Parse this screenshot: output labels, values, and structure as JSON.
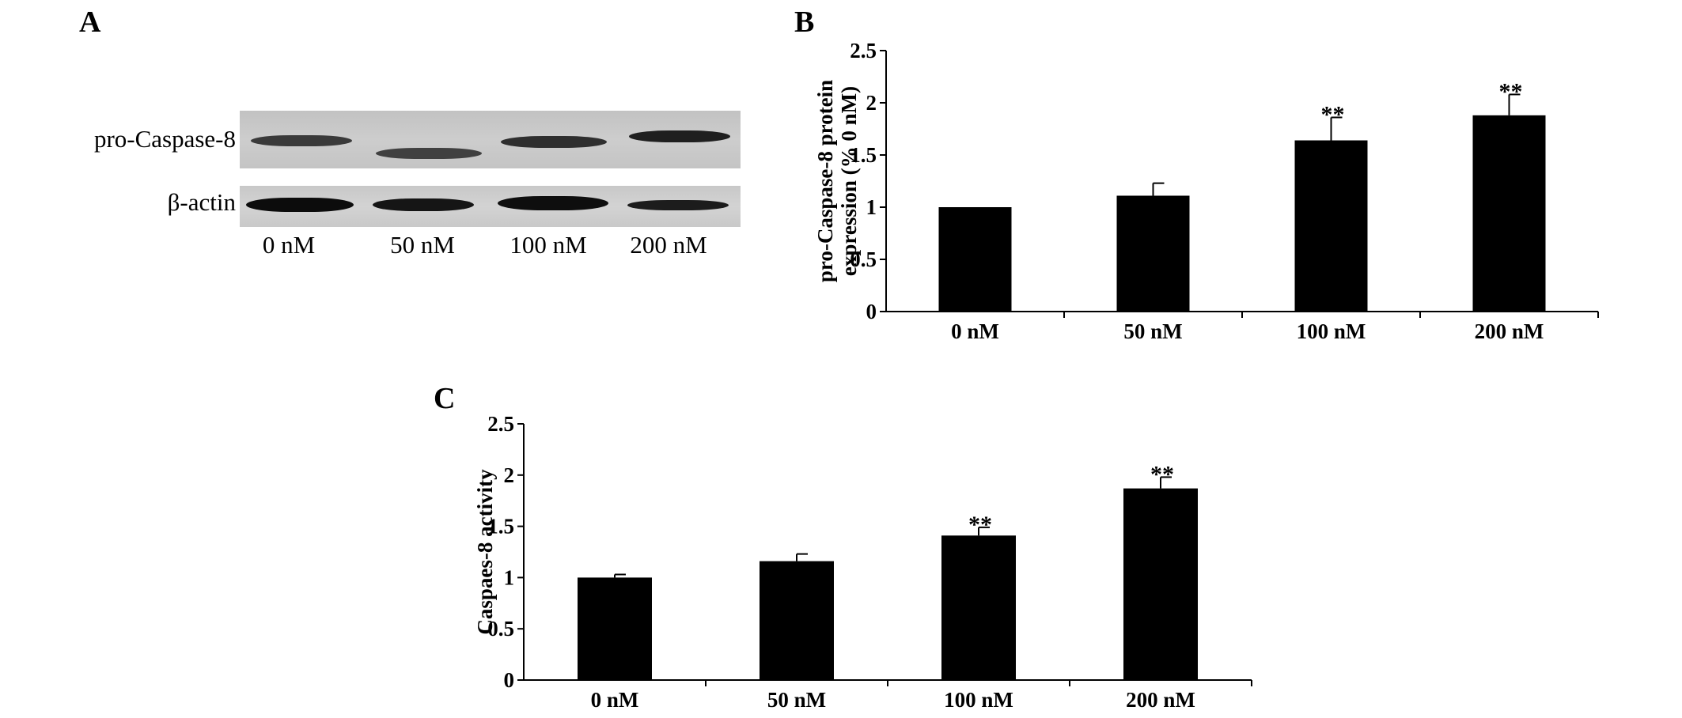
{
  "panels": {
    "a": "A",
    "b": "B",
    "c": "C"
  },
  "blot": {
    "row_labels": [
      "pro-Caspase-8",
      "β-actin"
    ],
    "lanes": [
      "0 nM",
      "50 nM",
      "100 nM",
      "200 nM"
    ]
  },
  "chart_data": [
    {
      "id": "B",
      "type": "bar",
      "categories": [
        "0 nM",
        "50 nM",
        "100 nM",
        "200 nM"
      ],
      "values": [
        1.0,
        1.11,
        1.64,
        1.88
      ],
      "errors": [
        0.0,
        0.12,
        0.22,
        0.2
      ],
      "significance": [
        "",
        "",
        "**",
        "**"
      ],
      "ylabel_lines": [
        "pro-Caspase-8 protein",
        "expression  (% 0  nM)"
      ],
      "ylim": [
        0,
        2.5
      ],
      "yticks": [
        "0",
        "0.5",
        "1",
        "1.5",
        "2",
        "2.5"
      ],
      "bar_color": "#000000"
    },
    {
      "id": "C",
      "type": "bar",
      "categories": [
        "0 nM",
        "50 nM",
        "100 nM",
        "200 nM"
      ],
      "values": [
        1.0,
        1.16,
        1.41,
        1.87
      ],
      "errors": [
        0.03,
        0.07,
        0.08,
        0.11
      ],
      "significance": [
        "",
        "",
        "**",
        "**"
      ],
      "ylabel_lines": [
        "Caspaes-8 activity"
      ],
      "ylim": [
        0,
        2.5
      ],
      "yticks": [
        "0",
        "0.5",
        "1",
        "1.5",
        "2",
        "2.5"
      ],
      "bar_color": "#000000"
    }
  ]
}
